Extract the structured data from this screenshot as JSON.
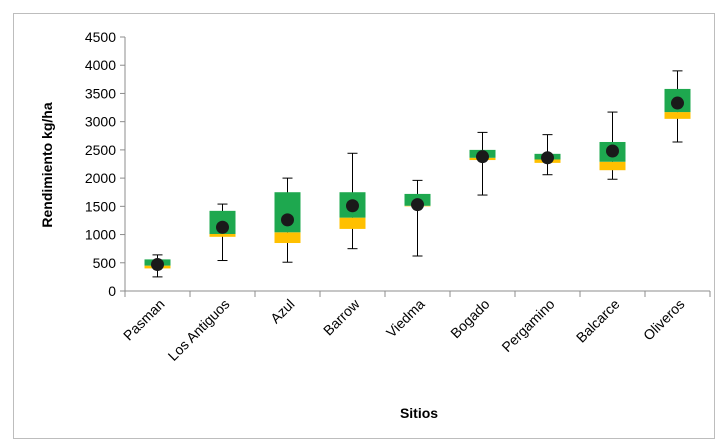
{
  "chart_data": {
    "type": "boxplot",
    "title": "",
    "xlabel": "Sitios",
    "ylabel": "Rendimiento kg/ha",
    "ylim": [
      0,
      4500
    ],
    "yticks": [
      0,
      500,
      1000,
      1500,
      2000,
      2500,
      3000,
      3500,
      4000,
      4500
    ],
    "grid": false,
    "legend": "none",
    "colors": {
      "upper_box": "#1ea84f",
      "lower_box": "#ffc000",
      "mean_marker": "#1a1a1a",
      "whisker": "#000000"
    },
    "categories": [
      "Pasman",
      "Los Antiguos",
      "Azul",
      "Barrow",
      "Viedma",
      "Bogado",
      "Pergamino",
      "Balcarce",
      "Oliveros"
    ],
    "series": [
      {
        "min": 250,
        "q1": 400,
        "median": 450,
        "q3": 560,
        "max": 640,
        "mean": 470
      },
      {
        "min": 540,
        "q1": 960,
        "median": 1010,
        "q3": 1420,
        "max": 1540,
        "mean": 1130
      },
      {
        "min": 510,
        "q1": 850,
        "median": 1040,
        "q3": 1750,
        "max": 2000,
        "mean": 1260
      },
      {
        "min": 750,
        "q1": 1100,
        "median": 1300,
        "q3": 1750,
        "max": 2440,
        "mean": 1510
      },
      {
        "min": 620,
        "q1": 1500,
        "median": 1510,
        "q3": 1720,
        "max": 1960,
        "mean": 1530
      },
      {
        "min": 1700,
        "q1": 2320,
        "median": 2360,
        "q3": 2500,
        "max": 2810,
        "mean": 2380
      },
      {
        "min": 2060,
        "q1": 2270,
        "median": 2330,
        "q3": 2430,
        "max": 2770,
        "mean": 2360
      },
      {
        "min": 1980,
        "q1": 2140,
        "median": 2290,
        "q3": 2640,
        "max": 3170,
        "mean": 2480
      },
      {
        "min": 2640,
        "q1": 3050,
        "median": 3170,
        "q3": 3580,
        "max": 3900,
        "mean": 3330
      }
    ]
  }
}
